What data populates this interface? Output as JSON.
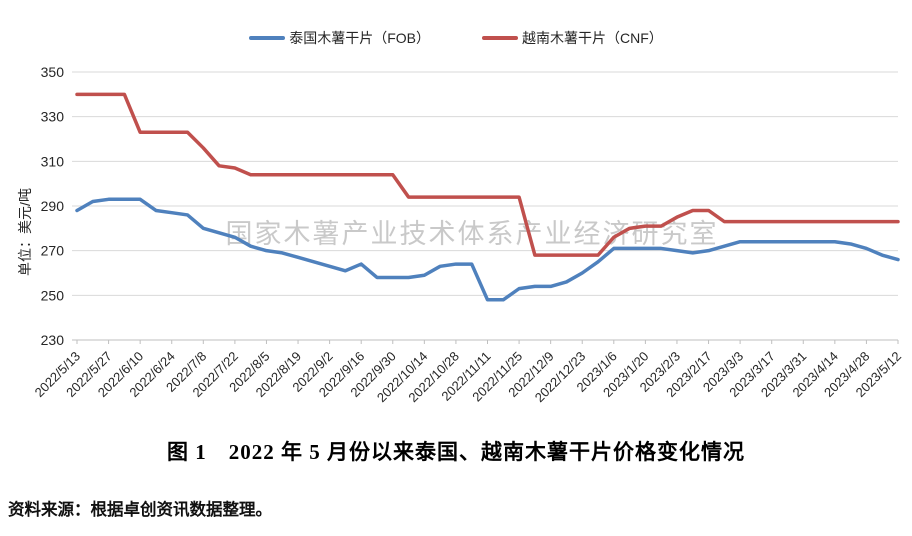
{
  "title": "图 1　2022 年 5 月份以来泰国、越南木薯干片价格变化情况",
  "source": "资料来源：根据卓创资讯数据整理。",
  "watermark": "国家木薯产业技术体系产业经济研究室",
  "y_axis_unit_label": "单位：美元/吨",
  "colors": {
    "thailand_line": "#4f81bd",
    "vietnam_line": "#c0504d",
    "gridline": "#d9d9d9",
    "axis": "#bfbfbf",
    "tick_text": "#262626",
    "watermark": "#a6a6a6"
  },
  "chart_data": {
    "type": "line",
    "title": "图 1　2022 年 5 月份以来泰国、越南木薯干片价格变化情况",
    "xlabel": "",
    "ylabel": "单位：美元/吨",
    "ylim": [
      230,
      350
    ],
    "y_ticks": [
      230,
      250,
      270,
      290,
      310,
      330,
      350
    ],
    "grid": "horizontal",
    "legend_position": "top",
    "x_note": "weekly price points; x tick labels shown every second point (biweekly dates)",
    "points_per_label_interval": 2,
    "x_tick_labels": [
      "2022/5/13",
      "2022/5/27",
      "2022/6/10",
      "2022/6/24",
      "2022/7/8",
      "2022/7/22",
      "2022/8/5",
      "2022/8/19",
      "2022/9/2",
      "2022/9/16",
      "2022/9/30",
      "2022/10/14",
      "2022/10/28",
      "2022/11/11",
      "2022/11/25",
      "2022/12/9",
      "2022/12/23",
      "2023/1/6",
      "2023/1/20",
      "2023/2/3",
      "2023/2/17",
      "2023/3/3",
      "2023/3/17",
      "2023/3/31",
      "2023/4/14",
      "2023/4/28",
      "2023/5/12"
    ],
    "series": [
      {
        "name": "泰国木薯干片（FOB）",
        "color": "#4f81bd",
        "values": [
          288,
          292,
          293,
          293,
          293,
          288,
          287,
          286,
          280,
          278,
          276,
          272,
          270,
          269,
          267,
          265,
          263,
          261,
          264,
          258,
          258,
          258,
          259,
          263,
          264,
          264,
          248,
          248,
          253,
          254,
          254,
          256,
          260,
          265,
          271,
          271,
          271,
          271,
          270,
          269,
          270,
          272,
          274,
          274,
          274,
          274,
          274,
          274,
          274,
          273,
          271,
          268,
          266
        ]
      },
      {
        "name": "越南木薯干片（CNF）",
        "color": "#c0504d",
        "values": [
          340,
          340,
          340,
          340,
          323,
          323,
          323,
          323,
          316,
          308,
          307,
          304,
          304,
          304,
          304,
          304,
          304,
          304,
          304,
          304,
          304,
          294,
          294,
          294,
          294,
          294,
          294,
          294,
          294,
          268,
          268,
          268,
          268,
          268,
          276,
          280,
          281,
          281,
          285,
          288,
          288,
          283,
          283,
          283,
          283,
          283,
          283,
          283,
          283,
          283,
          283,
          283,
          283
        ]
      }
    ]
  }
}
